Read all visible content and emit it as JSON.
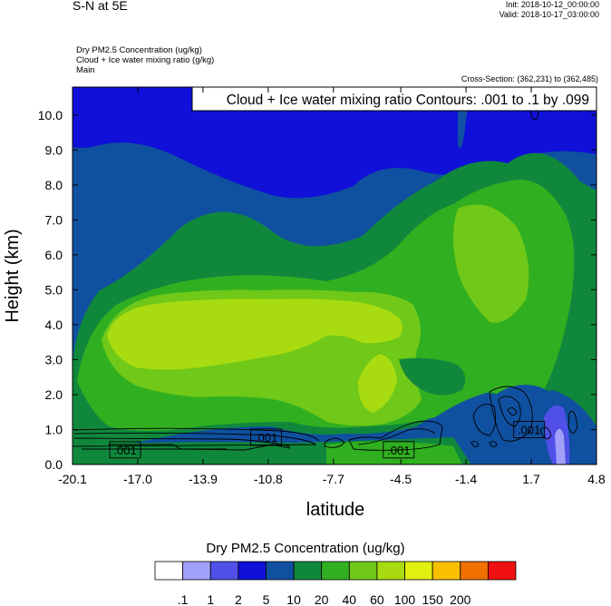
{
  "header": {
    "title": "S-N at 5E",
    "init": "Init: 2018-10-12_00:00:00",
    "valid": "Valid: 2018-10-17_03:00:00",
    "field1": "Dry PM2.5 Concentration   (ug/kg)",
    "field2": "Cloud + Ice water mixing ratio   (g/kg)",
    "field3": "Main",
    "cross_section": "Cross-Section: (362,231) to (362,485)"
  },
  "chart_data": {
    "type": "heatmap",
    "contour_title": "Cloud + Ice water mixing ratio Contours: .001 to .1 by .099",
    "xlabel": "latitude",
    "ylabel": "Height (km)",
    "xlim": [
      -20.1,
      4.8
    ],
    "ylim": [
      0,
      10.8
    ],
    "x_ticks": [
      -20.1,
      -17.0,
      -13.9,
      -10.8,
      -7.7,
      -4.5,
      -1.4,
      1.7,
      4.8
    ],
    "x_tick_labels": [
      "-20.1",
      "-17.0",
      "-13.9",
      "-10.8",
      "-7.7",
      "-4.5",
      "-1.4",
      "1.7",
      "4.8"
    ],
    "y_ticks": [
      0,
      1,
      2,
      3,
      4,
      5,
      6,
      7,
      8,
      9,
      10
    ],
    "y_tick_labels": [
      "0.0",
      "1.0",
      "2.0",
      "3.0",
      "4.0",
      "5.0",
      "6.0",
      "7.0",
      "8.0",
      "9.0",
      "10.0"
    ],
    "contour_labels": [
      {
        "text": ".001",
        "x": -17.6,
        "y": 0.42
      },
      {
        "text": ".001",
        "x": -10.9,
        "y": 0.78
      },
      {
        "text": ".001",
        "x": -4.6,
        "y": 0.42
      },
      {
        "text": ".001",
        "x": 1.6,
        "y": 1.0
      }
    ],
    "colorbar": {
      "title": "Dry PM2.5 Concentration  (ug/kg)",
      "levels": [
        ".1",
        "1",
        "2",
        "5",
        "10",
        "20",
        "40",
        "60",
        "100",
        "150",
        "200"
      ],
      "colors": [
        "#ffffff",
        "#a0a0f8",
        "#5050e8",
        "#1010d8",
        "#1050a0",
        "#10883c",
        "#30b020",
        "#70c818",
        "#a8dc10",
        "#e0f010",
        "#f8c000",
        "#f07000",
        "#f01010"
      ]
    }
  }
}
